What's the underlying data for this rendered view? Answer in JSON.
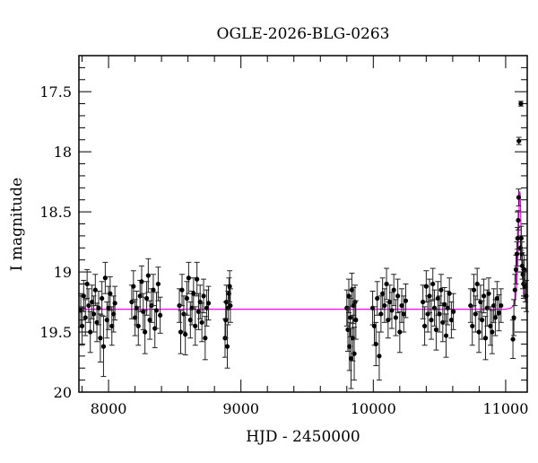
{
  "chart_data": {
    "type": "scatter",
    "title": "OGLE-2026-BLG-0263",
    "xlabel": "HJD - 2450000",
    "ylabel": "I magnitude",
    "xlim": [
      7776,
      11163
    ],
    "ylim": [
      17.2,
      20
    ],
    "y_inverted": true,
    "grid": false,
    "x_ticks": [
      8000,
      9000,
      10000,
      11000
    ],
    "x_tick_labels": [
      "8000",
      "9000",
      "10000",
      "11000"
    ],
    "x_minor_step": 200,
    "y_ticks": [
      17.5,
      18,
      18.5,
      19,
      19.5,
      20
    ],
    "y_tick_labels": [
      "17.5",
      "18",
      "18.5",
      "19",
      "19.5",
      "20"
    ],
    "y_minor_step": 0.1,
    "colors": {
      "points": "#000000",
      "model": "#ff00ff"
    },
    "series": [
      {
        "kind": "points_with_errorbars",
        "columns": [
          "hjd",
          "mag",
          "err"
        ],
        "points": [
          [
            7790,
            19.32,
            0.14
          ],
          [
            7800,
            19.45,
            0.16
          ],
          [
            7812,
            19.2,
            0.13
          ],
          [
            7825,
            19.38,
            0.15
          ],
          [
            7838,
            19.1,
            0.12
          ],
          [
            7850,
            19.28,
            0.14
          ],
          [
            7862,
            19.5,
            0.17
          ],
          [
            7875,
            19.25,
            0.14
          ],
          [
            7888,
            19.35,
            0.15
          ],
          [
            7900,
            19.15,
            0.13
          ],
          [
            7912,
            19.42,
            0.16
          ],
          [
            7925,
            19.3,
            0.14
          ],
          [
            7938,
            19.55,
            0.2
          ],
          [
            7950,
            19.22,
            0.14
          ],
          [
            7962,
            19.62,
            0.25
          ],
          [
            7975,
            19.05,
            0.13
          ],
          [
            7988,
            19.4,
            0.15
          ],
          [
            8000,
            19.3,
            0.18
          ],
          [
            8012,
            19.18,
            0.14
          ],
          [
            8025,
            19.45,
            0.16
          ],
          [
            8038,
            19.35,
            0.15
          ],
          [
            8048,
            19.26,
            0.14
          ],
          [
            8175,
            19.25,
            0.14
          ],
          [
            8188,
            19.12,
            0.13
          ],
          [
            8200,
            19.38,
            0.15
          ],
          [
            8212,
            19.3,
            0.14
          ],
          [
            8225,
            19.45,
            0.16
          ],
          [
            8238,
            19.2,
            0.13
          ],
          [
            8250,
            19.08,
            0.13
          ],
          [
            8262,
            19.33,
            0.15
          ],
          [
            8275,
            19.5,
            0.18
          ],
          [
            8288,
            19.22,
            0.14
          ],
          [
            8300,
            19.03,
            0.14
          ],
          [
            8312,
            19.4,
            0.16
          ],
          [
            8325,
            19.28,
            0.14
          ],
          [
            8338,
            19.15,
            0.13
          ],
          [
            8350,
            19.47,
            0.16
          ],
          [
            8362,
            19.32,
            0.15
          ],
          [
            8375,
            19.1,
            0.14
          ],
          [
            8390,
            19.36,
            0.15
          ],
          [
            8535,
            19.28,
            0.14
          ],
          [
            8545,
            19.5,
            0.18
          ],
          [
            8555,
            19.15,
            0.13
          ],
          [
            8568,
            19.35,
            0.15
          ],
          [
            8580,
            19.52,
            0.17
          ],
          [
            8592,
            19.22,
            0.14
          ],
          [
            8605,
            19.05,
            0.13
          ],
          [
            8618,
            19.4,
            0.15
          ],
          [
            8630,
            19.3,
            0.14
          ],
          [
            8642,
            19.18,
            0.13
          ],
          [
            8655,
            19.45,
            0.16
          ],
          [
            8668,
            19.06,
            0.14
          ],
          [
            8680,
            19.33,
            0.15
          ],
          [
            8692,
            19.25,
            0.14
          ],
          [
            8705,
            19.42,
            0.16
          ],
          [
            8718,
            19.2,
            0.14
          ],
          [
            8730,
            19.55,
            0.18
          ],
          [
            8742,
            19.3,
            0.15
          ],
          [
            8755,
            19.26,
            0.14
          ],
          [
            8880,
            19.55,
            0.16
          ],
          [
            8885,
            19.4,
            0.15
          ],
          [
            8890,
            19.25,
            0.14
          ],
          [
            8897,
            19.62,
            0.18
          ],
          [
            8903,
            19.3,
            0.14
          ],
          [
            8910,
            19.18,
            0.13
          ],
          [
            8915,
            19.12,
            0.13
          ],
          [
            8920,
            19.28,
            0.14
          ],
          [
            9800,
            19.3,
            0.15
          ],
          [
            9808,
            19.48,
            0.18
          ],
          [
            9815,
            19.2,
            0.14
          ],
          [
            9820,
            19.62,
            0.2
          ],
          [
            9826,
            19.38,
            0.16
          ],
          [
            9832,
            19.72,
            0.25
          ],
          [
            9838,
            19.15,
            0.14
          ],
          [
            9845,
            19.55,
            0.19
          ],
          [
            9850,
            19.28,
            0.15
          ],
          [
            9856,
            19.68,
            0.22
          ],
          [
            9862,
            19.25,
            0.14
          ],
          [
            9868,
            19.4,
            0.16
          ],
          [
            9995,
            19.3,
            0.14
          ],
          [
            10008,
            19.45,
            0.16
          ],
          [
            10020,
            19.6,
            0.18
          ],
          [
            10030,
            19.22,
            0.14
          ],
          [
            10045,
            19.7,
            0.2
          ],
          [
            10058,
            19.35,
            0.15
          ],
          [
            10070,
            19.18,
            0.13
          ],
          [
            10085,
            19.28,
            0.14
          ],
          [
            10100,
            19.1,
            0.13
          ],
          [
            10112,
            19.4,
            0.15
          ],
          [
            10125,
            19.25,
            0.14
          ],
          [
            10140,
            19.32,
            0.15
          ],
          [
            10155,
            19.15,
            0.13
          ],
          [
            10170,
            19.38,
            0.15
          ],
          [
            10185,
            19.2,
            0.14
          ],
          [
            10200,
            19.5,
            0.17
          ],
          [
            10215,
            19.28,
            0.14
          ],
          [
            10230,
            19.35,
            0.15
          ],
          [
            10245,
            19.24,
            0.14
          ],
          [
            10375,
            19.25,
            0.14
          ],
          [
            10388,
            19.45,
            0.16
          ],
          [
            10400,
            19.12,
            0.13
          ],
          [
            10412,
            19.35,
            0.15
          ],
          [
            10425,
            19.2,
            0.14
          ],
          [
            10438,
            19.4,
            0.16
          ],
          [
            10450,
            19.1,
            0.13
          ],
          [
            10462,
            19.3,
            0.15
          ],
          [
            10475,
            19.48,
            0.17
          ],
          [
            10488,
            19.22,
            0.14
          ],
          [
            10500,
            19.35,
            0.15
          ],
          [
            10512,
            19.15,
            0.13
          ],
          [
            10525,
            19.42,
            0.16
          ],
          [
            10538,
            19.27,
            0.14
          ],
          [
            10550,
            19.53,
            0.18
          ],
          [
            10562,
            19.3,
            0.14
          ],
          [
            10575,
            19.18,
            0.13
          ],
          [
            10590,
            19.4,
            0.15
          ],
          [
            10605,
            19.33,
            0.15
          ],
          [
            10735,
            19.28,
            0.14
          ],
          [
            10748,
            19.45,
            0.16
          ],
          [
            10760,
            19.15,
            0.13
          ],
          [
            10772,
            19.35,
            0.15
          ],
          [
            10785,
            19.1,
            0.13
          ],
          [
            10798,
            19.5,
            0.17
          ],
          [
            10810,
            19.25,
            0.14
          ],
          [
            10822,
            19.4,
            0.16
          ],
          [
            10835,
            19.2,
            0.14
          ],
          [
            10848,
            19.55,
            0.18
          ],
          [
            10860,
            19.3,
            0.15
          ],
          [
            10872,
            19.18,
            0.13
          ],
          [
            10885,
            19.45,
            0.16
          ],
          [
            10898,
            19.5,
            0.18
          ],
          [
            10910,
            19.28,
            0.14
          ],
          [
            10922,
            19.38,
            0.15
          ],
          [
            10935,
            19.22,
            0.14
          ],
          [
            10950,
            19.34,
            0.15
          ],
          [
            10965,
            19.28,
            0.14
          ],
          [
            11055,
            19.56,
            0.16
          ],
          [
            11062,
            19.38,
            0.15
          ],
          [
            11070,
            19.15,
            0.13
          ],
          [
            11078,
            18.98,
            0.12
          ],
          [
            11085,
            18.85,
            0.1
          ],
          [
            11090,
            18.72,
            0.09
          ],
          [
            11095,
            18.57,
            0.08
          ],
          [
            11098,
            18.38,
            0.07
          ],
          [
            11100,
            17.91,
            0.03
          ],
          [
            11115,
            17.6,
            0.02
          ],
          [
            11112,
            18.8,
            0.1
          ],
          [
            11118,
            18.72,
            0.1
          ],
          [
            11122,
            18.85,
            0.1
          ],
          [
            11126,
            18.95,
            0.11
          ],
          [
            11130,
            19.02,
            0.12
          ],
          [
            11135,
            19.1,
            0.12
          ],
          [
            11140,
            18.98,
            0.12
          ],
          [
            11148,
            19.12,
            0.13
          ],
          [
            11155,
            19.2,
            0.13
          ]
        ]
      },
      {
        "kind": "model_curve",
        "columns": [
          "hjd",
          "mag"
        ],
        "points": [
          [
            7776,
            19.31
          ],
          [
            11000,
            19.31
          ],
          [
            11040,
            19.3
          ],
          [
            11060,
            19.28
          ],
          [
            11075,
            19.22
          ],
          [
            11085,
            19.1
          ],
          [
            11092,
            18.9
          ],
          [
            11098,
            18.65
          ],
          [
            11103,
            18.42
          ],
          [
            11107,
            18.33
          ],
          [
            11110,
            18.36
          ],
          [
            11114,
            18.55
          ],
          [
            11120,
            18.85
          ],
          [
            11128,
            19.05
          ],
          [
            11140,
            19.18
          ],
          [
            11163,
            19.26
          ]
        ]
      }
    ]
  }
}
